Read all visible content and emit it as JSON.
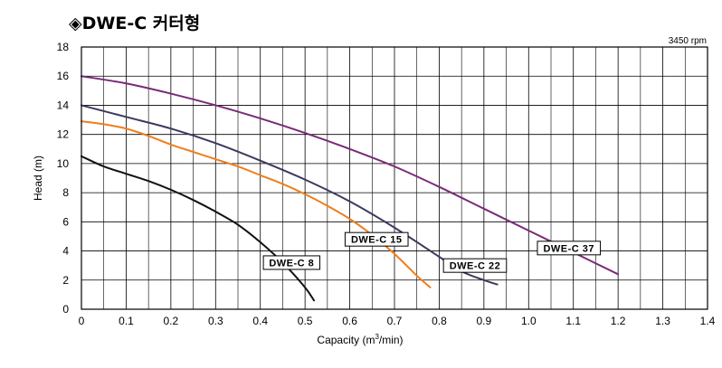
{
  "chart_data": {
    "type": "line",
    "title": "◈DWE-C 커터형",
    "speed_note": "3450 rpm",
    "xlabel_main": "Capacity (m",
    "xlabel_sup": "3",
    "xlabel_end": "/min)",
    "ylabel": "Head (m)",
    "xlim": [
      0,
      1.4
    ],
    "ylim": [
      0,
      18
    ],
    "x_ticks": [
      "0",
      "0.1",
      "0.2",
      "0.3",
      "0.4",
      "0.5",
      "0.6",
      "0.7",
      "0.8",
      "0.9",
      "1.0",
      "1.1",
      "1.2",
      "1.3",
      "1.4"
    ],
    "y_ticks": [
      "0",
      "2",
      "4",
      "6",
      "8",
      "10",
      "12",
      "14",
      "16",
      "18"
    ],
    "grid": true,
    "series": [
      {
        "name": "DWE-C 8",
        "color": "#111111",
        "x": [
          0,
          0.05,
          0.1,
          0.15,
          0.2,
          0.25,
          0.3,
          0.35,
          0.4,
          0.45,
          0.5,
          0.52
        ],
        "y": [
          10.5,
          9.8,
          9.3,
          8.8,
          8.2,
          7.5,
          6.7,
          5.8,
          4.6,
          3.2,
          1.5,
          0.6
        ],
        "label_x": 0.47,
        "label_y": 3.2
      },
      {
        "name": "DWE-C 15",
        "color": "#f07d1a",
        "x": [
          0,
          0.05,
          0.1,
          0.15,
          0.2,
          0.25,
          0.3,
          0.35,
          0.4,
          0.45,
          0.5,
          0.55,
          0.6,
          0.65,
          0.7,
          0.75,
          0.78
        ],
        "y": [
          12.9,
          12.7,
          12.4,
          11.9,
          11.3,
          10.8,
          10.3,
          9.8,
          9.2,
          8.6,
          7.9,
          7.1,
          6.2,
          5.1,
          3.8,
          2.3,
          1.5
        ],
        "label_x": 0.66,
        "label_y": 4.8
      },
      {
        "name": "DWE-C 22",
        "color": "#3a3a5e",
        "x": [
          0,
          0.1,
          0.2,
          0.3,
          0.4,
          0.5,
          0.6,
          0.7,
          0.8,
          0.85,
          0.9,
          0.93
        ],
        "y": [
          14.0,
          13.2,
          12.4,
          11.4,
          10.2,
          8.9,
          7.4,
          5.6,
          3.6,
          2.6,
          2.0,
          1.7
        ],
        "label_x": 0.88,
        "label_y": 3.0
      },
      {
        "name": "DWE-C 37",
        "color": "#7a2a78",
        "x": [
          0,
          0.1,
          0.2,
          0.3,
          0.4,
          0.5,
          0.6,
          0.7,
          0.8,
          0.9,
          1.0,
          1.1,
          1.2
        ],
        "y": [
          16.0,
          15.5,
          14.8,
          14.0,
          13.1,
          12.1,
          11.0,
          9.8,
          8.4,
          6.9,
          5.4,
          3.9,
          2.4
        ],
        "label_x": 1.09,
        "label_y": 4.2
      }
    ]
  }
}
